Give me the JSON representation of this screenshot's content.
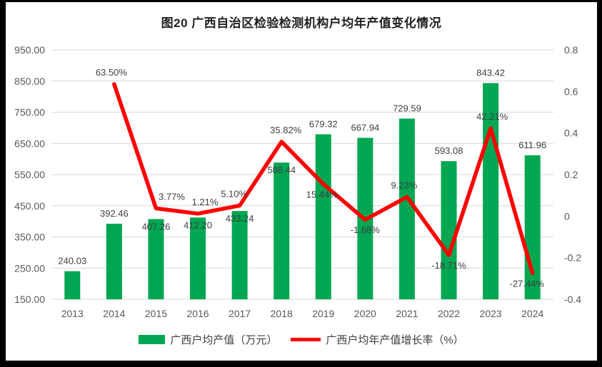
{
  "chart_data": {
    "type": "combo-bar-line",
    "title": "图20 广西自治区检验检测机构户均年产值变化情况",
    "categories": [
      "2013",
      "2014",
      "2015",
      "2016",
      "2017",
      "2018",
      "2019",
      "2020",
      "2021",
      "2022",
      "2023",
      "2024"
    ],
    "series": [
      {
        "name": "广西户均产值（万元）",
        "type": "bar",
        "axis": "left",
        "color": "#00A651",
        "values": [
          240.03,
          392.46,
          407.26,
          412.2,
          433.24,
          588.44,
          679.32,
          667.94,
          729.59,
          593.08,
          843.42,
          611.96
        ],
        "labels": [
          "240.03",
          "392.46",
          "407.26",
          "412.20",
          "433.24",
          "588.44",
          "679.32",
          "667.94",
          "729.59",
          "593.08",
          "843.42",
          "611.96"
        ],
        "label_placement": [
          "above",
          "above",
          "inside",
          "inside",
          "inside",
          "inside",
          "above",
          "above",
          "above",
          "above",
          "above",
          "above"
        ]
      },
      {
        "name": "广西户均年产值增长率（%）",
        "type": "line",
        "axis": "right",
        "color": "#FF0000",
        "values": [
          null,
          0.635,
          0.0377,
          0.0121,
          0.051,
          0.3582,
          0.1544,
          -0.0168,
          0.0923,
          -0.1871,
          0.4221,
          -0.2744
        ],
        "labels": [
          null,
          "63.50%",
          "3.77%",
          "1.21%",
          "5.10%",
          "35.82%",
          "15.44%",
          "-1.68%",
          "9.23%",
          "-18.71%",
          "42.21%",
          "-27.44%"
        ],
        "label_placement": [
          null,
          "above",
          "above",
          "above",
          "above",
          "above",
          "below",
          "below",
          "above",
          "below",
          "above",
          "below"
        ],
        "label_dx": [
          0,
          -4,
          22,
          10,
          -8,
          6,
          -2,
          0,
          -4,
          0,
          2,
          -8
        ]
      }
    ],
    "left_axis": {
      "min": 150,
      "max": 950,
      "step": 100,
      "tick_labels": [
        "950.00",
        "850.00",
        "750.00",
        "650.00",
        "550.00",
        "450.00",
        "350.00",
        "250.00",
        "150.00"
      ]
    },
    "right_axis": {
      "min": -0.4,
      "max": 0.8,
      "step": 0.2,
      "tick_labels": [
        "0.8",
        "0.6",
        "0.4",
        "0.2",
        "0",
        "-0.2",
        "-0.4"
      ]
    },
    "grid": true,
    "gridline_color": "#D9D9D9",
    "axis_text_color": "#595959",
    "label_text_color": "#404040",
    "legend_position": "bottom",
    "frame_color": "#000000",
    "background_color": "#FFFFFF"
  }
}
